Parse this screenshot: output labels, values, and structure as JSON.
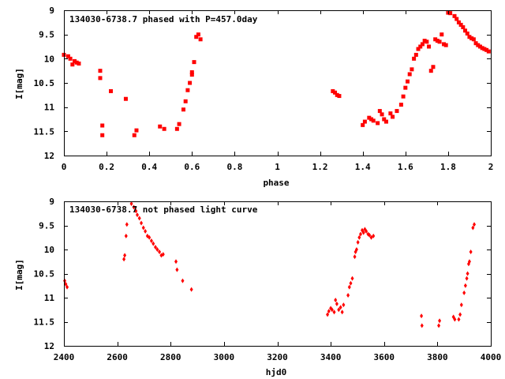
{
  "chart_data": [
    {
      "type": "scatter",
      "title": "134030-6738.7 phased with P=457.0day",
      "xlabel": "phase",
      "ylabel": "I[mag]",
      "xlim": [
        0,
        2
      ],
      "ylim": [
        12,
        9
      ],
      "y_inverted": true,
      "xticks": [
        0,
        0.2,
        0.4,
        0.6,
        0.8,
        1,
        1.2,
        1.4,
        1.6,
        1.8,
        2
      ],
      "xtick_labels": [
        "0",
        "0.2",
        "0.4",
        "0.6",
        "0.8",
        "1",
        "1.2",
        "1.4",
        "1.6",
        "1.8",
        "2"
      ],
      "yticks": [
        9,
        9.5,
        10,
        10.5,
        11,
        11.5,
        12
      ],
      "ytick_labels": [
        "9",
        "9.5",
        "10",
        "10.5",
        "11",
        "11.5",
        "12"
      ],
      "grid": false,
      "marker_color": "#ff0000",
      "series": [
        {
          "x": [
            0.0,
            0.02,
            0.03,
            0.04,
            0.05,
            0.06,
            0.07,
            0.17,
            0.17,
            0.18,
            0.18,
            0.22,
            0.29,
            0.33,
            0.34,
            0.45,
            0.47,
            0.53,
            0.54,
            0.56,
            0.57,
            0.58,
            0.59,
            0.6,
            0.6,
            0.61,
            0.62,
            0.63,
            0.64,
            1.26,
            1.27,
            1.28,
            1.29,
            1.4,
            1.41,
            1.43,
            1.44,
            1.45,
            1.47,
            1.48,
            1.49,
            1.5,
            1.51,
            1.53,
            1.54,
            1.56,
            1.58,
            1.59,
            1.6,
            1.61,
            1.62,
            1.63,
            1.64,
            1.65,
            1.66,
            1.67,
            1.68,
            1.69,
            1.7,
            1.71,
            1.72,
            1.73,
            1.74,
            1.75,
            1.76,
            1.77,
            1.78,
            1.79,
            1.8,
            1.81,
            1.83,
            1.84,
            1.85,
            1.86,
            1.87,
            1.88,
            1.89,
            1.9,
            1.91,
            1.92,
            1.93,
            1.94,
            1.95,
            1.96,
            1.97,
            1.98,
            1.99
          ],
          "y": [
            9.92,
            9.95,
            10.0,
            10.12,
            10.05,
            10.08,
            10.1,
            10.25,
            10.4,
            11.38,
            11.58,
            10.67,
            10.83,
            11.58,
            11.48,
            11.4,
            11.45,
            11.45,
            11.35,
            11.05,
            10.88,
            10.65,
            10.5,
            10.33,
            10.28,
            10.07,
            9.55,
            9.5,
            9.6,
            10.67,
            10.7,
            10.75,
            10.77,
            11.37,
            11.3,
            11.22,
            11.25,
            11.28,
            11.33,
            11.08,
            11.15,
            11.25,
            11.3,
            11.13,
            11.2,
            11.08,
            10.95,
            10.78,
            10.6,
            10.47,
            10.32,
            10.22,
            10.0,
            9.92,
            9.8,
            9.75,
            9.7,
            9.63,
            9.65,
            9.75,
            10.25,
            10.17,
            9.6,
            9.63,
            9.65,
            9.5,
            9.7,
            9.72,
            9.05,
            9.06,
            9.12,
            9.18,
            9.25,
            9.3,
            9.35,
            9.42,
            9.48,
            9.55,
            9.58,
            9.6,
            9.68,
            9.72,
            9.75,
            9.78,
            9.8,
            9.82,
            9.85
          ]
        }
      ]
    },
    {
      "type": "scatter",
      "title": "134030-6738.7 not phased light curve",
      "xlabel": "hjd0",
      "ylabel": "I[mag]",
      "xlim": [
        2400,
        4000
      ],
      "ylim": [
        12,
        9
      ],
      "y_inverted": true,
      "xticks": [
        2400,
        2600,
        2800,
        3000,
        3200,
        3400,
        3600,
        3800,
        4000
      ],
      "xtick_labels": [
        "2400",
        "2600",
        "2800",
        "3000",
        "3200",
        "3400",
        "3600",
        "3800",
        "4000"
      ],
      "yticks": [
        9,
        9.5,
        10,
        10.5,
        11,
        11.5,
        12
      ],
      "ytick_labels": [
        "9",
        "9.5",
        "10",
        "10.5",
        "11",
        "11.5",
        "12"
      ],
      "grid": false,
      "marker_color": "#ff0000",
      "series": [
        {
          "x": [
            2403,
            2407,
            2412,
            2625,
            2628,
            2633,
            2636,
            2653,
            2662,
            2670,
            2675,
            2683,
            2690,
            2698,
            2705,
            2713,
            2720,
            2728,
            2735,
            2743,
            2750,
            2758,
            2765,
            2772,
            2820,
            2824,
            2845,
            2878,
            3388,
            3393,
            3400,
            3405,
            3413,
            3418,
            3423,
            3430,
            3437,
            3443,
            3448,
            3465,
            3470,
            3475,
            3481,
            3490,
            3493,
            3497,
            3502,
            3507,
            3512,
            3518,
            3523,
            3528,
            3533,
            3540,
            3545,
            3552,
            3560,
            3740,
            3742,
            3805,
            3808,
            3860,
            3865,
            3880,
            3885,
            3890,
            3900,
            3905,
            3910,
            3913,
            3917,
            3920,
            3925,
            3933,
            3938
          ],
          "y": [
            10.65,
            10.72,
            10.78,
            10.2,
            10.12,
            9.72,
            9.48,
            9.05,
            9.12,
            9.2,
            9.28,
            9.35,
            9.45,
            9.55,
            9.62,
            9.72,
            9.75,
            9.82,
            9.88,
            9.95,
            10.0,
            10.05,
            10.12,
            10.1,
            10.25,
            10.42,
            10.65,
            10.83,
            11.35,
            11.28,
            11.22,
            11.25,
            11.3,
            11.05,
            11.13,
            11.25,
            11.2,
            11.3,
            11.15,
            10.95,
            10.78,
            10.7,
            10.6,
            10.15,
            10.05,
            10.0,
            9.85,
            9.75,
            9.68,
            9.6,
            9.65,
            9.58,
            9.62,
            9.68,
            9.7,
            9.75,
            9.72,
            11.38,
            11.58,
            11.58,
            11.48,
            11.4,
            11.45,
            11.45,
            11.35,
            11.15,
            10.9,
            10.75,
            10.6,
            10.5,
            10.3,
            10.25,
            10.05,
            9.55,
            9.48
          ]
        }
      ]
    }
  ]
}
